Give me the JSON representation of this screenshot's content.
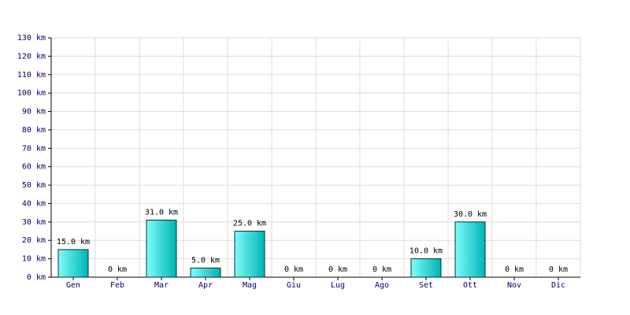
{
  "chart_data": {
    "type": "bar",
    "categories": [
      "Gen",
      "Feb",
      "Mar",
      "Apr",
      "Mag",
      "Giu",
      "Lug",
      "Ago",
      "Set",
      "Ott",
      "Nov",
      "Dic"
    ],
    "values": [
      15,
      0,
      31,
      5,
      25,
      0,
      0,
      0,
      10,
      30,
      0,
      0
    ],
    "value_labels": [
      "15.0 km",
      "0 km",
      "31.0 km",
      "5.0 km",
      "25.0 km",
      "0 km",
      "0 km",
      "0 km",
      "10.0 km",
      "30.0 km",
      "0 km",
      "0 km"
    ],
    "color": "#00b4b4",
    "ylim": [
      0,
      130
    ],
    "yticks": [
      {
        "value": 0,
        "label": "0 km"
      },
      {
        "value": 10,
        "label": "10 km"
      },
      {
        "value": 20,
        "label": "20 km"
      },
      {
        "value": 30,
        "label": "30 km"
      },
      {
        "value": 40,
        "label": "40 km"
      },
      {
        "value": 50,
        "label": "50 km"
      },
      {
        "value": 60,
        "label": "60 km"
      },
      {
        "value": 70,
        "label": "70 km"
      },
      {
        "value": 80,
        "label": "80 km"
      },
      {
        "value": 90,
        "label": "90 km"
      },
      {
        "value": 100,
        "label": "100 km"
      },
      {
        "value": 110,
        "label": "110 km"
      },
      {
        "value": 120,
        "label": "120 km"
      },
      {
        "value": 130,
        "label": "130 km"
      }
    ],
    "grid": true
  }
}
